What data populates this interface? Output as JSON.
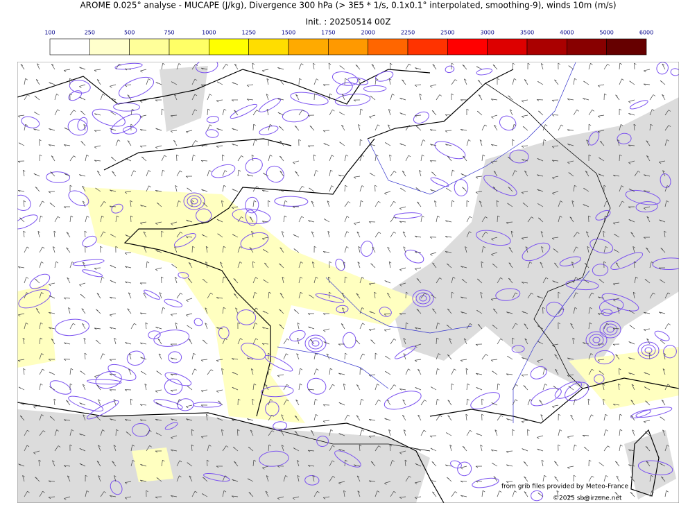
{
  "header": {
    "title": "AROME 0.025° analyse - MUCAPE (J/kg), Divergence 300 hPa (> 3E5 * 1/s, 0.1x0.1° interpolated, smoothing-9), winds 10m (m/s)",
    "init": "Init. : 20250514 00Z"
  },
  "colorbar": {
    "ticks": [
      100,
      250,
      500,
      750,
      1000,
      1250,
      1500,
      1750,
      2000,
      2250,
      2500,
      3000,
      3500,
      4000,
      5000,
      6000
    ],
    "colors": [
      "#ffffff",
      "#ffffcc",
      "#ffff99",
      "#ffff66",
      "#ffff00",
      "#ffdd00",
      "#ffaa00",
      "#ff9900",
      "#ff6600",
      "#ff3300",
      "#ff0000",
      "#dd0000",
      "#aa0000",
      "#880000",
      "#660000"
    ]
  },
  "credits": {
    "source": "from grib files provided by Meteo-France",
    "copyright": "©2025 sb@irzone.net"
  }
}
